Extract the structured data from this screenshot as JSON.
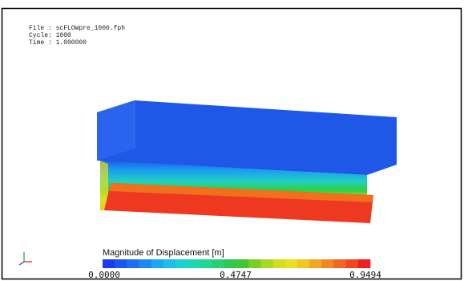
{
  "info": {
    "file": "File : scFLOWpre_1000.fph",
    "cycle": "Cycle: 1000",
    "time": "Time : 1.000000"
  },
  "legend": {
    "title": "Magnitude of Displacement [m]",
    "labels": [
      "0.0000",
      "0.4747",
      "0.9494"
    ]
  }
}
